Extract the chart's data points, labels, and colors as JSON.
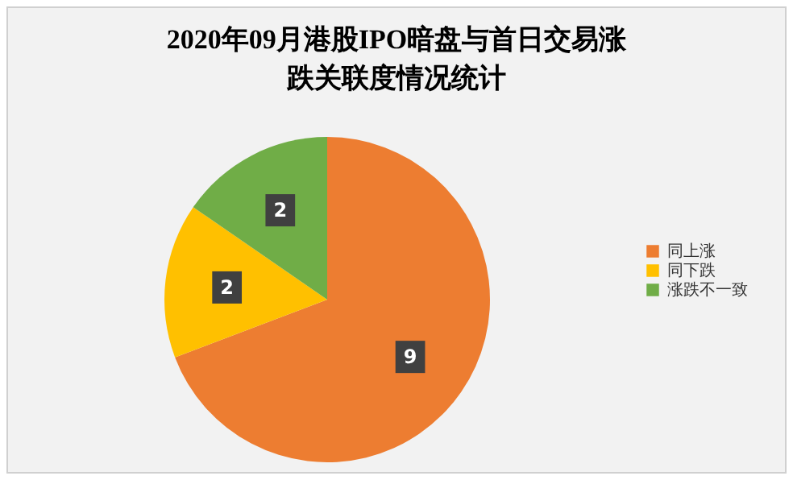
{
  "chart_data": {
    "type": "pie",
    "title": "2020年09月港股IPO暗盘与首日交易涨跌关联度情况统计",
    "categories": [
      "同上涨",
      "同下跌",
      "涨跌不一致"
    ],
    "values": [
      9,
      2,
      2
    ],
    "colors": [
      "#ed7d31",
      "#ffc000",
      "#70ad47"
    ],
    "data_labels": true,
    "legend": "right"
  }
}
